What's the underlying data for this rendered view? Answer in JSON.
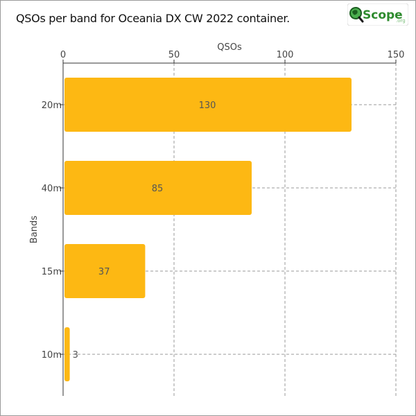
{
  "header": {
    "title": "QSOs per band for Oceania DX CW 2022 container.",
    "logo": {
      "name": "Scope",
      "suffix": ".org"
    }
  },
  "colors": {
    "bar": "#FDB813",
    "grid": "#9a9a9a",
    "logo_green": "#2e8b2e"
  },
  "chart_data": {
    "type": "bar",
    "orientation": "horizontal",
    "title": "QSOs per band for Oceania DX CW 2022 container.",
    "xlabel": "QSOs",
    "ylabel": "Bands",
    "xlim": [
      0,
      150
    ],
    "xticks": [
      0,
      50,
      100,
      150
    ],
    "categories": [
      "20m",
      "40m",
      "15m",
      "10m"
    ],
    "values": [
      130,
      85,
      37,
      3
    ],
    "grid": true,
    "x_axis_position": "top"
  }
}
